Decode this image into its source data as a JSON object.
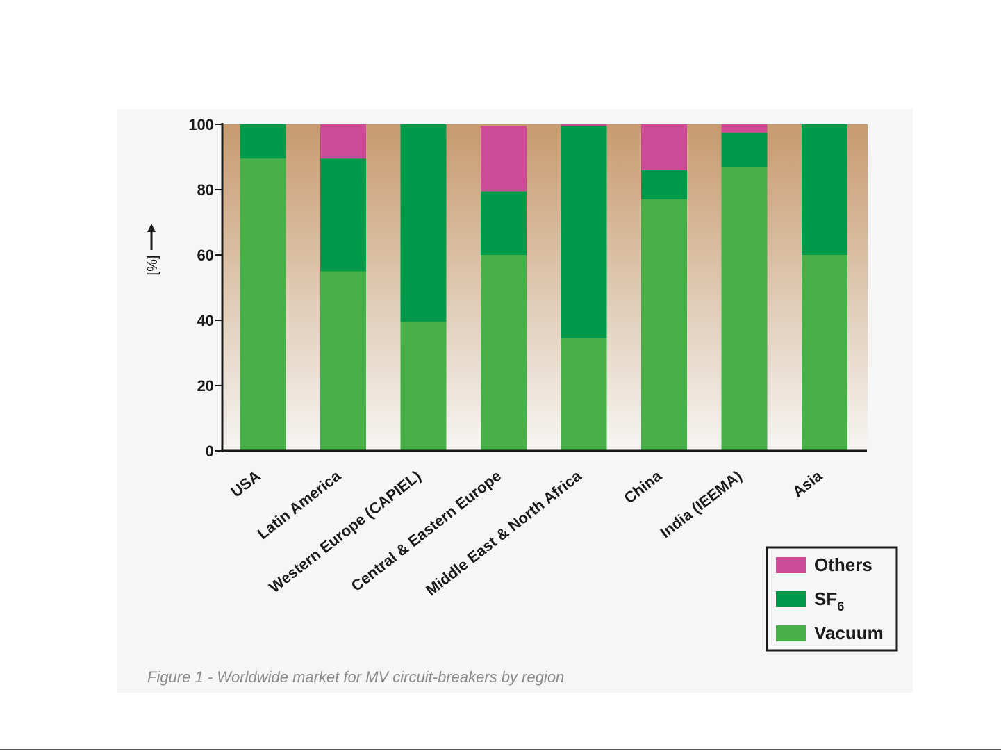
{
  "caption": "Figure 1 - Worldwide market for MV circuit-breakers by region",
  "chart_data": {
    "type": "bar",
    "stacked": true,
    "title": "",
    "ylabel": "[%]",
    "ylim": [
      0,
      100
    ],
    "yticks": [
      "0",
      "20",
      "40",
      "60",
      "80",
      "100"
    ],
    "categories": [
      "USA",
      "Latin America",
      "Western Europe (CAPIEL)",
      "Central & Eastern Europe",
      "Middle East & North Africa",
      "China",
      "India (IEEMA)",
      "Asia"
    ],
    "series": [
      {
        "name": "Vacuum",
        "color": "#47b048",
        "values": [
          89.5,
          55,
          39.5,
          60,
          34.5,
          77,
          87,
          60
        ]
      },
      {
        "name": "SF6",
        "color": "#009b4a",
        "values": [
          10.5,
          34.5,
          60.5,
          19.5,
          65,
          9,
          10.5,
          40
        ]
      },
      {
        "name": "Others",
        "color": "#cd4a97",
        "values": [
          0,
          10.5,
          0,
          20,
          0.5,
          14,
          2.5,
          0
        ]
      }
    ],
    "legend": {
      "placement": "bottom-right",
      "entries": [
        {
          "label": "Others",
          "sub": "",
          "color": "#cd4a97"
        },
        {
          "label": "SF",
          "sub": "6",
          "color": "#009b4a"
        },
        {
          "label": "Vacuum",
          "sub": "",
          "color": "#47b048"
        }
      ]
    },
    "background_gradient": [
      "#c79a6e",
      "#f6f5f3"
    ]
  }
}
